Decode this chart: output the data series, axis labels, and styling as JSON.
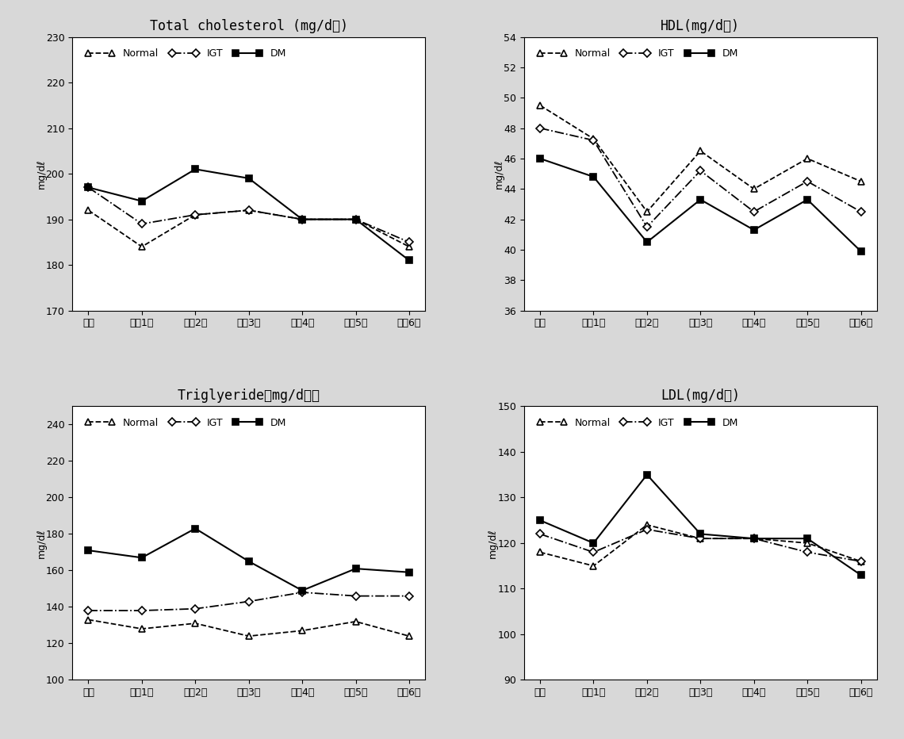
{
  "x_labels": [
    "기초",
    "추적1기",
    "추적2기",
    "추적3기",
    "추적4기",
    "추적5기",
    "추적6기"
  ],
  "total_cholesterol": {
    "title": "Total cholesterol (mg/dℓ)",
    "ylabel": "mg/dℓ",
    "ylim": [
      170,
      230
    ],
    "yticks": [
      170,
      180,
      190,
      200,
      210,
      220,
      230
    ],
    "normal": [
      192,
      184,
      191,
      192,
      190,
      190,
      184
    ],
    "igt": [
      197,
      189,
      191,
      192,
      190,
      190,
      185
    ],
    "dm": [
      197,
      194,
      201,
      199,
      190,
      190,
      181
    ]
  },
  "hdl": {
    "title": "HDL(mg/dℓ)",
    "ylabel": "mg/dℓ",
    "ylim": [
      36,
      54
    ],
    "yticks": [
      36,
      38,
      40,
      42,
      44,
      46,
      48,
      50,
      52,
      54
    ],
    "normal": [
      49.5,
      47.3,
      42.5,
      46.5,
      44.0,
      46.0,
      44.5
    ],
    "igt": [
      48.0,
      47.2,
      41.5,
      45.2,
      42.5,
      44.5,
      42.5
    ],
    "dm": [
      46.0,
      44.8,
      40.5,
      43.3,
      41.3,
      43.3,
      39.9
    ]
  },
  "triglyceride": {
    "title": "Triglyeride（mg/dℓ）",
    "ylabel": "mg/dℓ",
    "ylim": [
      100,
      250
    ],
    "yticks": [
      100,
      120,
      140,
      160,
      180,
      200,
      220,
      240
    ],
    "normal": [
      133,
      128,
      131,
      124,
      127,
      132,
      124
    ],
    "igt": [
      138,
      138,
      139,
      143,
      148,
      146,
      146
    ],
    "dm": [
      171,
      167,
      183,
      165,
      149,
      161,
      159
    ]
  },
  "ldl": {
    "title": "LDL(mg/dℓ)",
    "ylabel": "mg/dℓ",
    "ylim": [
      90,
      150
    ],
    "yticks": [
      90,
      100,
      110,
      120,
      130,
      140,
      150
    ],
    "normal": [
      118,
      115,
      124,
      121,
      121,
      120,
      116
    ],
    "igt": [
      122,
      118,
      123,
      121,
      121,
      118,
      116
    ],
    "dm": [
      125,
      120,
      135,
      122,
      121,
      121,
      113
    ]
  },
  "legend_labels": [
    "Normal",
    "IGT",
    "DM"
  ],
  "background_color": "#d8d8d8",
  "plot_bg_color": "#ffffff"
}
